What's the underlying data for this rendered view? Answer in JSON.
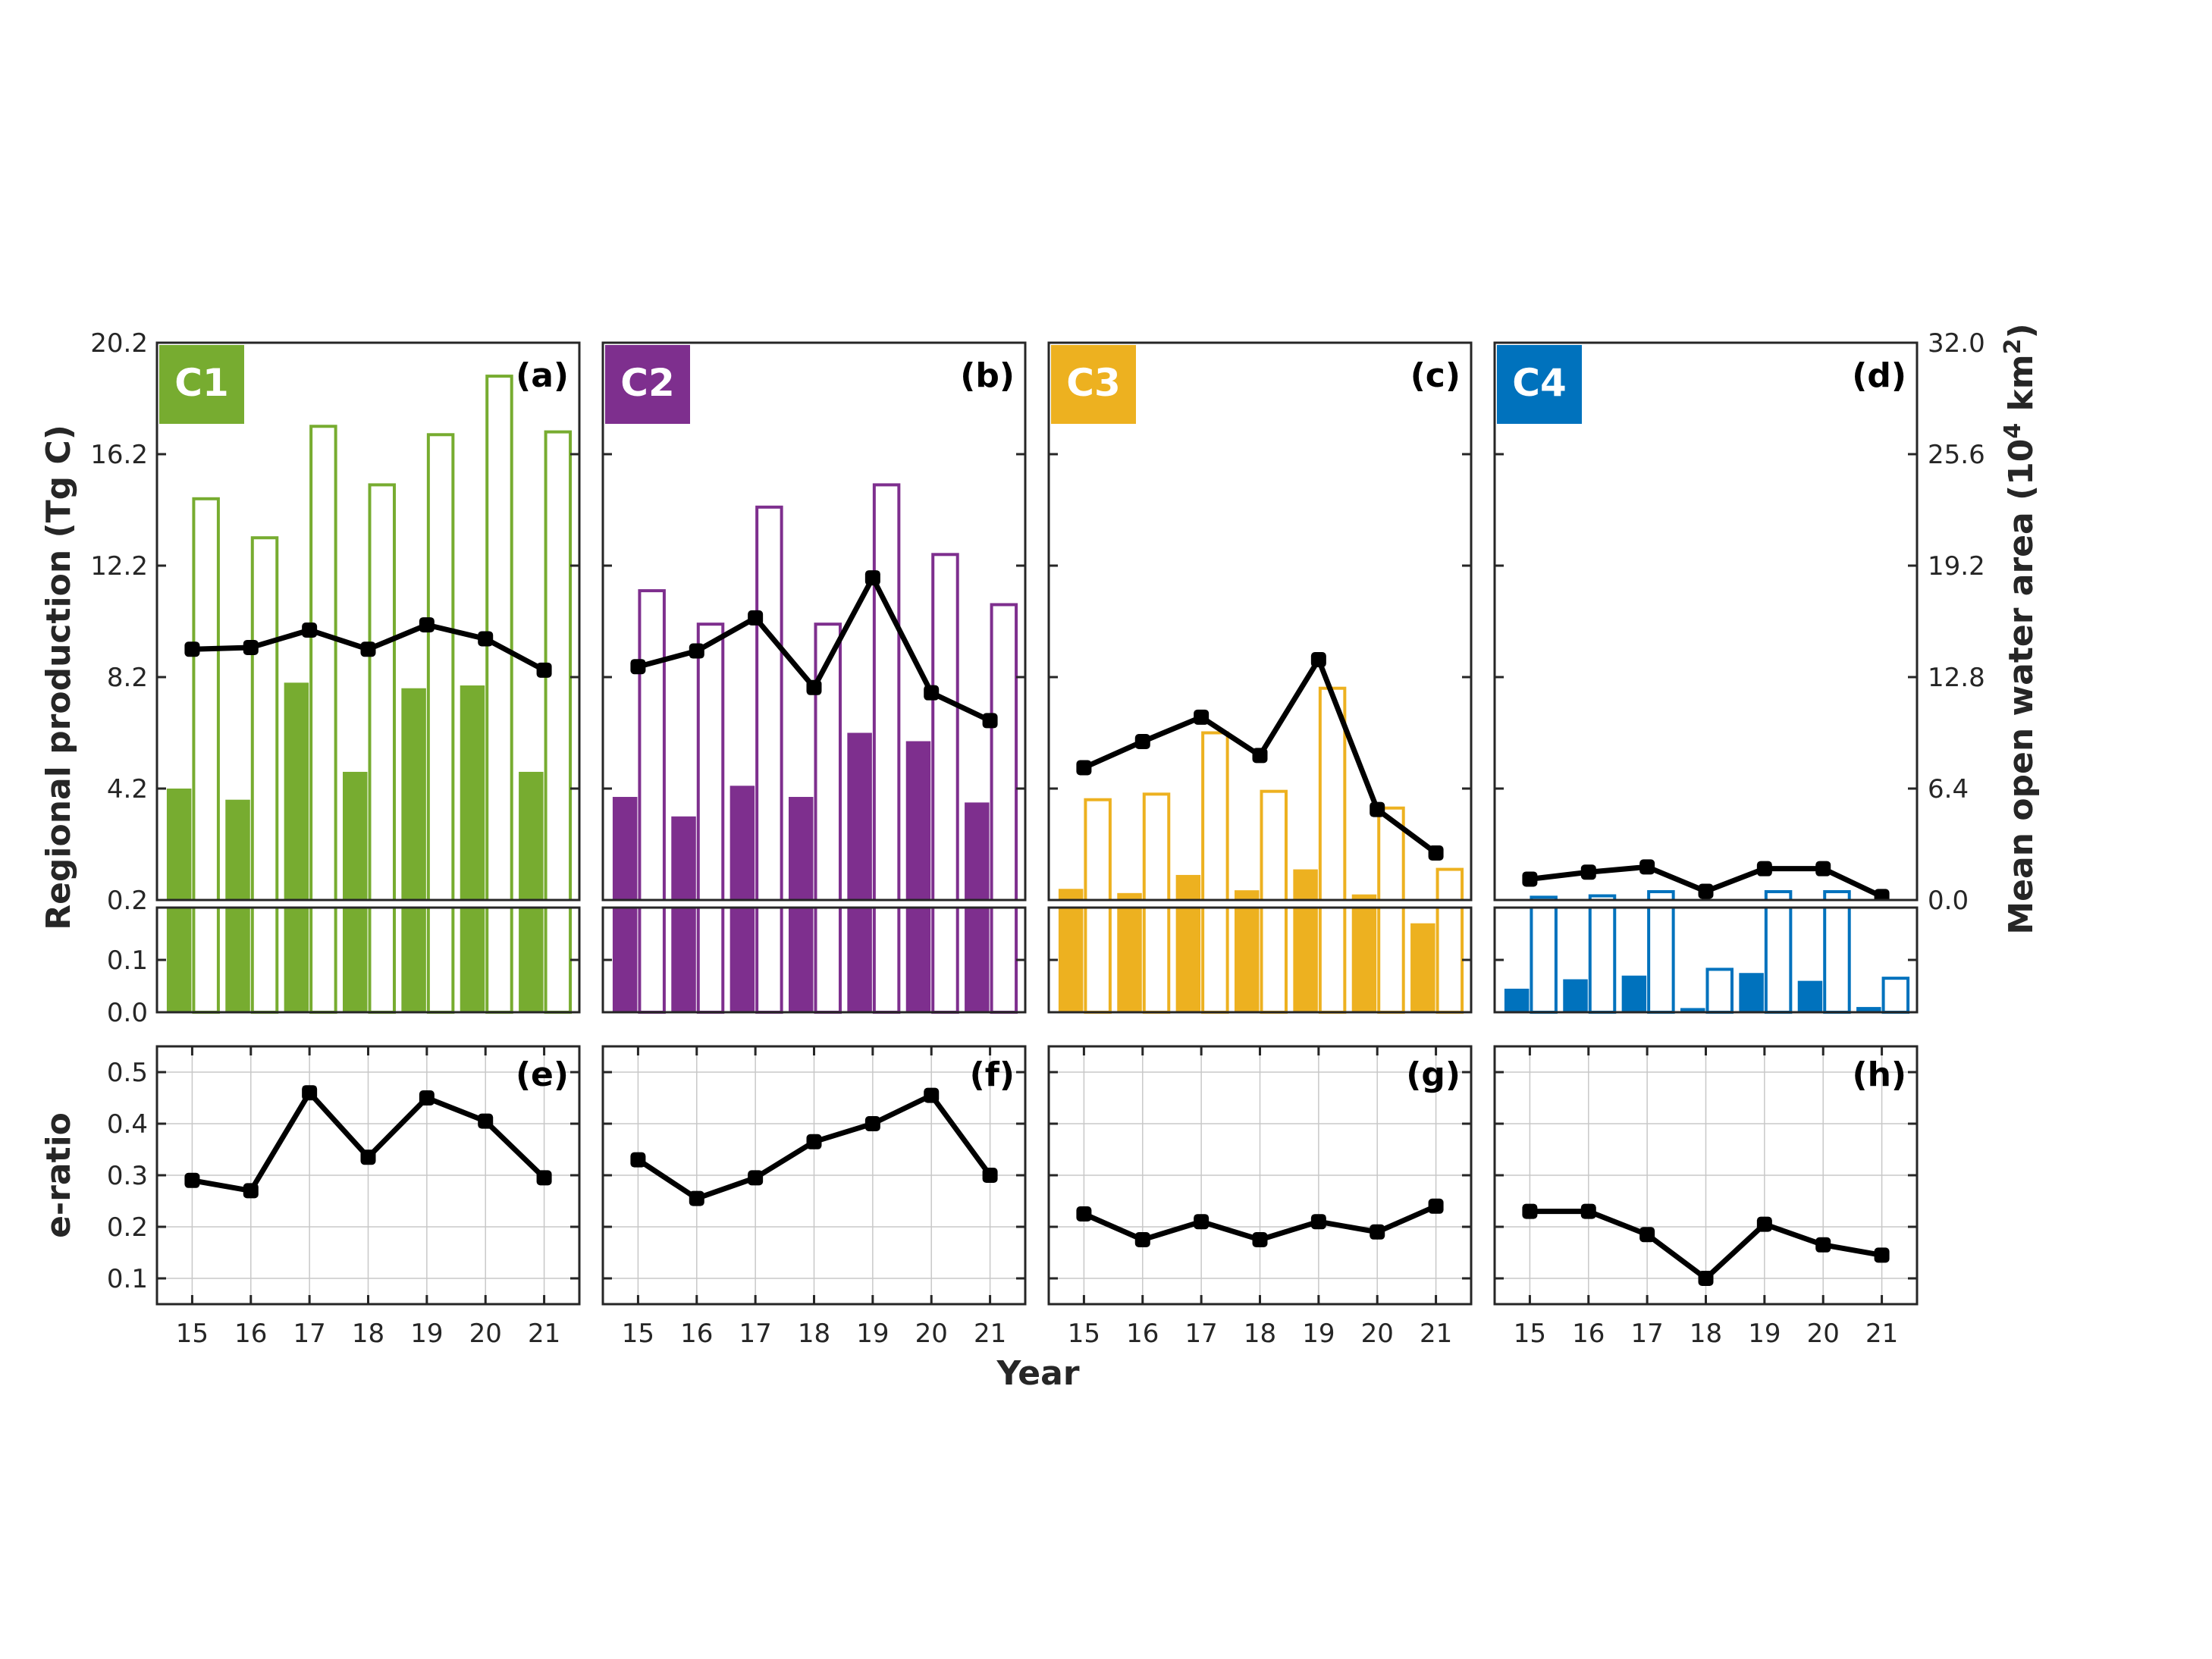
{
  "figure": {
    "ylabel_left": "Regional production (Tg C)",
    "ylabel_right_main": "Mean open water area (10",
    "ylabel_right_sup": "4",
    "ylabel_right_unit": " km",
    "ylabel_right_sup2": "2",
    "ylabel_right_close": ")",
    "ylabel_bottom": "e-ratio",
    "xlabel": "Year",
    "left_upper_ticks": [
      "0.2",
      "4.2",
      "8.2",
      "12.2",
      "16.2",
      "20.2"
    ],
    "left_lower_ticks": [
      "0.0",
      "0.1",
      "0.2"
    ],
    "right_ticks": [
      "0.0",
      "6.4",
      "12.8",
      "19.2",
      "25.6",
      "32.0"
    ],
    "eratio_ticks": [
      "0.1",
      "0.2",
      "0.3",
      "0.4",
      "0.5"
    ],
    "years": [
      "15",
      "16",
      "17",
      "18",
      "19",
      "20",
      "21"
    ]
  },
  "chart_data": [
    {
      "type": "bar",
      "panel": "(a)",
      "badge": "C1",
      "color": "#77AC30",
      "categories": [
        "15",
        "16",
        "17",
        "18",
        "19",
        "20",
        "21"
      ],
      "series": [
        {
          "kind": "filled-bar",
          "values": [
            4.2,
            3.8,
            8.0,
            4.8,
            7.8,
            7.9,
            4.8
          ]
        },
        {
          "kind": "open-bar",
          "values": [
            14.6,
            13.2,
            17.2,
            15.1,
            16.9,
            19.0,
            17.0
          ]
        },
        {
          "kind": "line",
          "values": [
            14.4,
            14.5,
            15.5,
            14.4,
            15.8,
            15.0,
            13.2
          ]
        }
      ],
      "ylim": [
        0,
        20.2
      ],
      "y2lim": [
        0,
        32.0
      ]
    },
    {
      "type": "bar",
      "panel": "(b)",
      "badge": "C2",
      "color": "#7E2F8E",
      "categories": [
        "15",
        "16",
        "17",
        "18",
        "19",
        "20",
        "21"
      ],
      "series": [
        {
          "kind": "filled-bar",
          "values": [
            3.9,
            3.2,
            4.3,
            3.9,
            6.2,
            5.9,
            3.7
          ]
        },
        {
          "kind": "open-bar",
          "values": [
            11.3,
            10.1,
            14.3,
            10.1,
            15.1,
            12.6,
            10.8
          ]
        },
        {
          "kind": "line",
          "values": [
            13.4,
            14.3,
            16.2,
            12.2,
            18.5,
            11.9,
            10.3
          ]
        }
      ],
      "ylim": [
        0,
        20.2
      ],
      "y2lim": [
        0,
        32.0
      ]
    },
    {
      "type": "bar",
      "panel": "(c)",
      "badge": "C3",
      "color": "#EDB120",
      "categories": [
        "15",
        "16",
        "17",
        "18",
        "19",
        "20",
        "21"
      ],
      "series": [
        {
          "kind": "filled-bar",
          "values": [
            0.6,
            0.45,
            1.1,
            0.55,
            1.3,
            0.4,
            0.17
          ]
        },
        {
          "kind": "open-bar",
          "values": [
            3.8,
            4.0,
            6.2,
            4.1,
            7.8,
            3.5,
            1.3
          ]
        },
        {
          "kind": "line",
          "values": [
            7.6,
            9.1,
            10.5,
            8.3,
            13.8,
            5.2,
            2.7
          ]
        }
      ],
      "ylim": [
        0,
        20.2
      ],
      "y2lim": [
        0,
        32.0
      ]
    },
    {
      "type": "bar",
      "panel": "(d)",
      "badge": "C4",
      "color": "#0072BD",
      "categories": [
        "15",
        "16",
        "17",
        "18",
        "19",
        "20",
        "21"
      ],
      "series": [
        {
          "kind": "filled-bar",
          "values": [
            0.045,
            0.063,
            0.07,
            0.008,
            0.075,
            0.06,
            0.01
          ]
        },
        {
          "kind": "open-bar",
          "values": [
            0.3,
            0.35,
            0.5,
            0.082,
            0.5,
            0.5,
            0.065
          ]
        },
        {
          "kind": "line",
          "values": [
            1.2,
            1.6,
            1.9,
            0.5,
            1.8,
            1.8,
            0.2
          ]
        }
      ],
      "ylim": [
        0,
        20.2
      ],
      "y2lim": [
        0,
        32.0
      ]
    },
    {
      "type": "line",
      "panel": "(e)",
      "categories": [
        "15",
        "16",
        "17",
        "18",
        "19",
        "20",
        "21"
      ],
      "values": [
        0.29,
        0.27,
        0.46,
        0.335,
        0.45,
        0.405,
        0.295
      ],
      "ylim": [
        0.05,
        0.55
      ]
    },
    {
      "type": "line",
      "panel": "(f)",
      "categories": [
        "15",
        "16",
        "17",
        "18",
        "19",
        "20",
        "21"
      ],
      "values": [
        0.33,
        0.255,
        0.295,
        0.365,
        0.4,
        0.455,
        0.3
      ],
      "ylim": [
        0.05,
        0.55
      ]
    },
    {
      "type": "line",
      "panel": "(g)",
      "categories": [
        "15",
        "16",
        "17",
        "18",
        "19",
        "20",
        "21"
      ],
      "values": [
        0.225,
        0.175,
        0.21,
        0.175,
        0.21,
        0.19,
        0.24
      ],
      "ylim": [
        0.05,
        0.55
      ]
    },
    {
      "type": "line",
      "panel": "(h)",
      "categories": [
        "15",
        "16",
        "17",
        "18",
        "19",
        "20",
        "21"
      ],
      "values": [
        0.23,
        0.23,
        0.185,
        0.1,
        0.205,
        0.165,
        0.145
      ],
      "ylim": [
        0.05,
        0.55
      ]
    }
  ]
}
